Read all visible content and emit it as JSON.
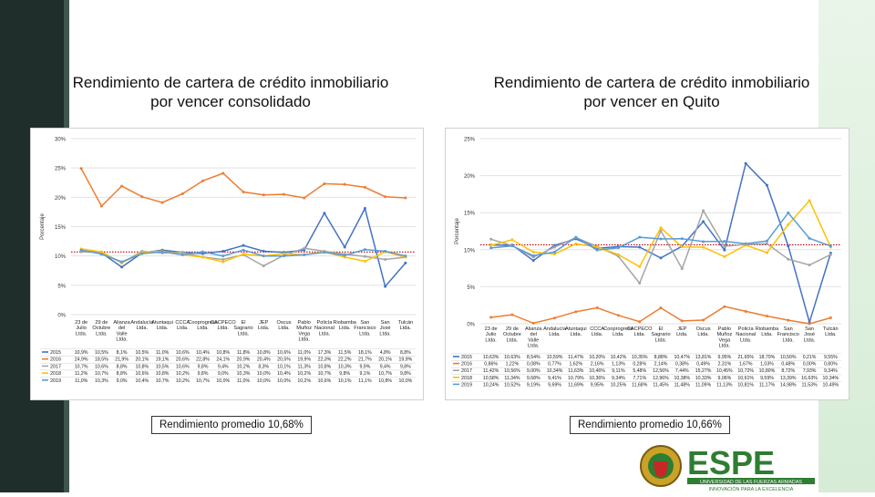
{
  "colors": {
    "series": [
      "#4472c4",
      "#ed7d31",
      "#a5a5a5",
      "#ffc000",
      "#5b9bd5"
    ],
    "trend": "#c00000",
    "sidebar": "#1f2e2a",
    "espe_green": "#2e7d32"
  },
  "logo": {
    "main": "ESPE",
    "sub1": "UNIVERSIDAD DE LAS FUERZAS ARMADAS",
    "sub2": "INNOVACIÓN PARA LA EXCELENCIA"
  },
  "chart_data": [
    {
      "type": "line",
      "title": "Rendimiento de cartera de crédito inmobiliario por vencer consolidado",
      "ylabel": "Porcentaje",
      "ylim": [
        0,
        30
      ],
      "yticks": [
        0,
        5,
        10,
        15,
        20,
        25,
        30
      ],
      "ytick_labels": [
        "0%",
        "5%",
        "10%",
        "15%",
        "20%",
        "25%",
        "30%"
      ],
      "categories": [
        "23 de Julio Ltda.",
        "29 de Octubre Ltda.",
        "Alianza del Valle Ltda.",
        "Andalucía Ltda.",
        "Atuntaqui Ltda.",
        "CCCA Ltda.",
        "Cooprogreso Ltda.",
        "CACPECO Ltda.",
        "El Sagrario Ltda.",
        "JEP Ltda.",
        "Oscus Ltda.",
        "Pablo Muñoz Vega Ltda.",
        "Policía Nacional Ltda.",
        "Riobamba Ltda.",
        "San Francisco Ltda.",
        "San José Ltda.",
        "Tulcán Ltda."
      ],
      "average_label": "Rendimiento promedio 10,68%",
      "series": [
        {
          "name": "2015",
          "values": [
            10.9,
            10.5,
            8.1,
            10.5,
            11.0,
            10.6,
            10.4,
            10.8,
            11.8,
            10.8,
            10.6,
            11.0,
            17.3,
            11.5,
            18.1,
            4.8,
            8.8
          ],
          "labels": [
            "10,9%",
            "10,5%",
            "8,1%",
            "10,5%",
            "11,0%",
            "10,6%",
            "10,4%",
            "10,8%",
            "11,8%",
            "10,8%",
            "10,6%",
            "11,0%",
            "17,3%",
            "11,5%",
            "18,1%",
            "4,8%",
            "8,8%"
          ]
        },
        {
          "name": "2016",
          "values": [
            24.9,
            18.5,
            21.9,
            20.1,
            19.1,
            20.6,
            22.8,
            24.1,
            20.9,
            20.4,
            20.5,
            19.9,
            22.3,
            22.2,
            21.7,
            20.1,
            19.9
          ],
          "labels": [
            "24,9%",
            "18,5%",
            "21,9%",
            "20,1%",
            "19,1%",
            "20,6%",
            "22,8%",
            "24,1%",
            "20,9%",
            "20,4%",
            "20,5%",
            "19,9%",
            "22,3%",
            "22,2%",
            "21,7%",
            "20,1%",
            "19,9%"
          ]
        },
        {
          "name": "2017",
          "values": [
            10.7,
            10.6,
            8.8,
            10.8,
            10.5,
            10.6,
            9.8,
            9.4,
            10.2,
            8.3,
            10.1,
            11.3,
            10.8,
            10.3,
            9.9,
            9.4,
            9.8
          ],
          "labels": [
            "10,7%",
            "10,6%",
            "8,8%",
            "10,8%",
            "10,5%",
            "10,6%",
            "9,8%",
            "9,4%",
            "10,2%",
            "8,3%",
            "10,1%",
            "11,3%",
            "10,8%",
            "10,3%",
            "9,9%",
            "9,4%",
            "9,8%"
          ]
        },
        {
          "name": "2018",
          "values": [
            11.2,
            10.7,
            8.8,
            10.6,
            10.8,
            10.2,
            9.8,
            9.0,
            10.3,
            10.0,
            10.4,
            10.2,
            10.7,
            9.8,
            9.1,
            10.7,
            9.8
          ],
          "labels": [
            "11,2%",
            "10,7%",
            "8,8%",
            "10,6%",
            "10,8%",
            "10,2%",
            "9,8%",
            "9,0%",
            "10,3%",
            "10,0%",
            "10,4%",
            "10,2%",
            "10,7%",
            "9,8%",
            "9,1%",
            "10,7%",
            "9,8%"
          ]
        },
        {
          "name": "2019",
          "values": [
            11.0,
            10.3,
            9.0,
            10.4,
            10.7,
            10.2,
            10.7,
            10.0,
            11.0,
            10.0,
            10.0,
            10.2,
            10.6,
            10.1,
            11.1,
            10.8,
            10.0
          ],
          "labels": [
            "11,0%",
            "10,3%",
            "9,0%",
            "10,4%",
            "10,7%",
            "10,2%",
            "10,7%",
            "10,0%",
            "11,0%",
            "10,0%",
            "10,0%",
            "10,2%",
            "10,6%",
            "10,1%",
            "11,1%",
            "10,8%",
            "10,0%"
          ]
        }
      ],
      "trend_value": 10.68
    },
    {
      "type": "line",
      "title": "Rendimiento de cartera de crédito inmobiliario por vencer en Quito",
      "ylabel": "Porcentaje",
      "ylim": [
        0,
        25
      ],
      "yticks": [
        0,
        5,
        10,
        15,
        20,
        25
      ],
      "ytick_labels": [
        "0%",
        "5%",
        "10%",
        "15%",
        "20%",
        "25%"
      ],
      "categories": [
        "23 de Julio Ltda.",
        "29 de Octubre Ltda.",
        "Alianza del Valle Ltda.",
        "Andalucía Ltda.",
        "Atuntaqui Ltda.",
        "CCCA Ltda.",
        "Cooprogreso Ltda.",
        "CACPECO Ltda.",
        "El Sagrario Ltda.",
        "JEP Ltda.",
        "Oscus Ltda.",
        "Pablo Muñoz Vega Ltda.",
        "Policía Nacional Ltda.",
        "Riobamba Ltda.",
        "San Francisco Ltda.",
        "San José Ltda.",
        "Tulcán Ltda."
      ],
      "average_label": "Rendimiento promedio 10,66%",
      "series": [
        {
          "name": "2015",
          "values": [
            10.63,
            10.63,
            8.54,
            10.59,
            11.47,
            10.2,
            10.42,
            10.35,
            8.88,
            10.47,
            13.81,
            9.95,
            21.65,
            18.7,
            10.5,
            0.21,
            9.55
          ],
          "labels": [
            "10,63%",
            "10,63%",
            "8,54%",
            "10,59%",
            "11,47%",
            "10,20%",
            "10,42%",
            "10,35%",
            "8,88%",
            "10,47%",
            "13,81%",
            "9,95%",
            "21,65%",
            "18,70%",
            "10,50%",
            "0,21%",
            "9,55%"
          ]
        },
        {
          "name": "2016",
          "values": [
            0.86,
            1.22,
            0.08,
            0.77,
            1.62,
            2.16,
            1.13,
            0.28,
            2.14,
            0.38,
            0.49,
            2.31,
            1.67,
            1.03,
            0.48,
            0.0,
            0.8
          ],
          "labels": [
            "0,86%",
            "1,22%",
            "0,08%",
            "0,77%",
            "1,62%",
            "2,16%",
            "1,13%",
            "0,28%",
            "2,14%",
            "0,38%",
            "0,49%",
            "2,31%",
            "1,67%",
            "1,03%",
            "0,48%",
            "0,00%",
            "0,80%"
          ]
        },
        {
          "name": "2017",
          "values": [
            11.42,
            10.56,
            9.0,
            10.34,
            11.63,
            10.46,
            9.11,
            5.48,
            12.56,
            7.44,
            15.27,
            10.45,
            10.72,
            10.8,
            8.72,
            7.93,
            9.34
          ],
          "labels": [
            "11,42%",
            "10,56%",
            "9,00%",
            "10,34%",
            "11,63%",
            "10,46%",
            "9,11%",
            "5,48%",
            "12,56%",
            "7,44%",
            "15,27%",
            "10,45%",
            "10,72%",
            "10,80%",
            "8,72%",
            "7,93%",
            "9,34%"
          ]
        },
        {
          "name": "2018",
          "values": [
            10.58,
            11.34,
            9.68,
            9.41,
            10.79,
            10.36,
            9.34,
            7.71,
            12.96,
            10.38,
            10.33,
            9.06,
            10.61,
            9.59,
            13.39,
            16.63,
            10.34
          ],
          "labels": [
            "10,58%",
            "11,34%",
            "9,68%",
            "9,41%",
            "10,79%",
            "10,36%",
            "9,34%",
            "7,71%",
            "12,96%",
            "10,38%",
            "10,33%",
            "9,06%",
            "10,61%",
            "9,59%",
            "13,39%",
            "16,63%",
            "10,34%"
          ]
        },
        {
          "name": "2019",
          "values": [
            10.24,
            10.52,
            9.19,
            9.69,
            11.69,
            9.95,
            10.25,
            11.68,
            11.45,
            11.48,
            11.09,
            11.13,
            10.81,
            11.17,
            14.98,
            11.53,
            10.49
          ],
          "labels": [
            "10,24%",
            "10,52%",
            "9,19%",
            "9,69%",
            "11,69%",
            "9,95%",
            "10,25%",
            "11,68%",
            "11,45%",
            "11,48%",
            "11,09%",
            "11,13%",
            "10,81%",
            "11,17%",
            "14,98%",
            "11,53%",
            "10,49%"
          ]
        }
      ],
      "trend_value": 10.66
    }
  ]
}
